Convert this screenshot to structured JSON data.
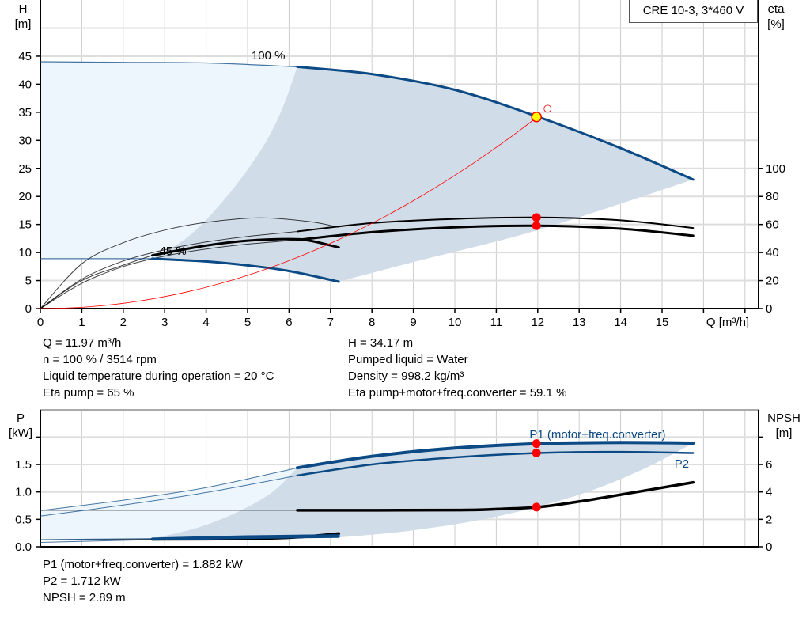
{
  "title": "CRE 10-3, 3*460 V",
  "colors": {
    "curve_blue": "#0b4a84",
    "region_dark": "#d0dce8",
    "region_light": "#eef6fd",
    "duty_point": "#ffff00",
    "marker": "#ff0000",
    "system_curve": "#ff0000",
    "grid": "#cccccc"
  },
  "chart_data": [
    {
      "type": "line",
      "xlabel": "Q [m³/h]",
      "ylabel_left": "H\n[m]",
      "ylabel_left_lines": [
        "H",
        "[m]"
      ],
      "ylabel_right_lines": [
        "eta",
        "[%]"
      ],
      "xlim": [
        0,
        17.3
      ],
      "ylim_left": [
        0,
        55
      ],
      "ylim_right": [
        0,
        220
      ],
      "grid": true,
      "x_ticks": [
        "0",
        "1",
        "2",
        "3",
        "4",
        "5",
        "6",
        "7",
        "8",
        "9",
        "10",
        "11",
        "12",
        "13",
        "14",
        "15"
      ],
      "y_ticks_left": [
        "0",
        "5",
        "10",
        "15",
        "20",
        "25",
        "30",
        "35",
        "40",
        "45"
      ],
      "y_ticks_right": [
        "0",
        "20",
        "40",
        "60",
        "80",
        "100"
      ],
      "head_curves": [
        {
          "label": "100 %",
          "points": [
            [
              0,
              44
            ],
            [
              2,
              43.9
            ],
            [
              4,
              43.8
            ],
            [
              6.2,
              43.1
            ],
            [
              8,
              41.8
            ],
            [
              10,
              39
            ],
            [
              12,
              34.2
            ],
            [
              14,
              28.6
            ],
            [
              15.75,
              23
            ]
          ],
          "thick_from": 6.2
        },
        {
          "label": "45 %",
          "points": [
            [
              0,
              8.9
            ],
            [
              2.7,
              8.9
            ],
            [
              4,
              8.4
            ],
            [
              5,
              7.7
            ],
            [
              6,
              6.7
            ],
            [
              7.2,
              4.8
            ]
          ],
          "thick_from": 2.7
        }
      ],
      "eta_curves": [
        {
          "points": [
            [
              0,
              0
            ],
            [
              1,
              32
            ],
            [
              2,
              47
            ],
            [
              3,
              56
            ],
            [
              4,
              61.5
            ],
            [
              5.3,
              64.8
            ],
            [
              6.5,
              62
            ],
            [
              7.2,
              58
            ]
          ],
          "thick_from": null
        },
        {
          "points": [
            [
              0,
              0
            ],
            [
              1,
              20
            ],
            [
              2,
              31
            ],
            [
              2.7,
              38
            ],
            [
              4,
              45
            ],
            [
              5,
              48.5
            ],
            [
              6,
              49.6
            ],
            [
              6.5,
              48.5
            ],
            [
              7.2,
              43.6
            ]
          ],
          "thick_from": 2.7
        },
        {
          "points": [
            [
              0,
              0
            ],
            [
              1,
              21
            ],
            [
              2,
              34
            ],
            [
              3,
              42
            ],
            [
              4,
              47.5
            ],
            [
              5,
              51.5
            ],
            [
              6.2,
              55
            ],
            [
              8,
              61
            ],
            [
              10,
              64
            ],
            [
              12,
              65
            ],
            [
              14,
              63
            ],
            [
              15.75,
              57.5
            ]
          ],
          "thick_from": 6.2
        },
        {
          "points": [
            [
              0,
              0
            ],
            [
              1,
              18
            ],
            [
              2,
              30
            ],
            [
              3,
              37.5
            ],
            [
              4,
              42.5
            ],
            [
              5,
              46
            ],
            [
              6.2,
              49
            ],
            [
              8,
              54.5
            ],
            [
              10,
              58
            ],
            [
              12,
              59.1
            ],
            [
              14,
              57
            ],
            [
              15.75,
              52
            ]
          ],
          "thick_from": 6.2
        }
      ],
      "system_curve": {
        "k": 0.2375,
        "q_max": 12.2
      },
      "duty_point": {
        "q": 11.97,
        "h": 34.17
      },
      "eta_points": [
        [
          11.97,
          65
        ],
        [
          11.97,
          59.1
        ]
      ]
    },
    {
      "type": "line",
      "ylabel_left_lines": [
        "P",
        "[kW]"
      ],
      "ylabel_right_lines": [
        "NPSH",
        "[m]"
      ],
      "xlim": [
        0,
        17.3
      ],
      "ylim_left": [
        0,
        2.5
      ],
      "ylim_right": [
        0,
        10
      ],
      "grid": true,
      "y_ticks_left": [
        "0.0",
        "0.5",
        "1.0",
        "1.5"
      ],
      "y_ticks_right": [
        "0",
        "2",
        "4",
        "6"
      ],
      "power_curves": [
        {
          "label": "P1 (motor+freq.converter)",
          "points": [
            [
              0,
              0.66
            ],
            [
              2,
              0.85
            ],
            [
              4,
              1.08
            ],
            [
              6.2,
              1.44
            ],
            [
              8,
              1.65
            ],
            [
              10,
              1.8
            ],
            [
              12,
              1.88
            ],
            [
              14,
              1.9
            ],
            [
              15.75,
              1.89
            ]
          ],
          "thick_from": 6.2
        },
        {
          "label": "P2",
          "points": [
            [
              0,
              0.56
            ],
            [
              2,
              0.76
            ],
            [
              4,
              0.99
            ],
            [
              6.2,
              1.3
            ],
            [
              8,
              1.5
            ],
            [
              10,
              1.63
            ],
            [
              12,
              1.71
            ],
            [
              14,
              1.73
            ],
            [
              15.75,
              1.71
            ]
          ],
          "thick_from": 6.2
        },
        {
          "points": [
            [
              0,
              0.13
            ],
            [
              2.7,
              0.15
            ],
            [
              5,
              0.19
            ],
            [
              7.2,
              0.21
            ]
          ],
          "thick_from": 2.7
        },
        {
          "points": [
            [
              0,
              0.08
            ],
            [
              2.7,
              0.13
            ],
            [
              5,
              0.16
            ],
            [
              7.2,
              0.18
            ]
          ],
          "thick_from": 2.7
        }
      ],
      "npsh_curves": [
        {
          "points": [
            [
              0,
              2.66
            ],
            [
              6.2,
              2.66
            ],
            [
              10,
              2.68
            ],
            [
              11,
              2.75
            ],
            [
              12,
              2.89
            ],
            [
              13,
              3.3
            ],
            [
              14,
              3.8
            ],
            [
              15.75,
              4.7
            ]
          ],
          "thick_from": 6.2
        },
        {
          "points": [
            [
              0,
              0.5
            ],
            [
              2.7,
              0.55
            ],
            [
              5,
              0.58
            ],
            [
              6.2,
              0.7
            ],
            [
              7.2,
              0.96
            ]
          ],
          "thick_from": 2.7
        }
      ],
      "operating_points": {
        "p1": 1.882,
        "p2": 1.712,
        "npsh": 2.89,
        "q": 11.97
      }
    }
  ],
  "info_top_left": [
    "Q = 11.97 m³/h",
    "n = 100 % / 3514 rpm",
    "Liquid temperature during operation = 20 °C",
    "Eta pump = 65 %"
  ],
  "info_top_right": [
    "H = 34.17 m",
    "Pumped liquid = Water",
    "Density = 998.2 kg/m³",
    "Eta pump+motor+freq.converter = 59.1 %"
  ],
  "info_bottom": [
    "P1 (motor+freq.converter) = 1.882 kW",
    "P2 = 1.712 kW",
    "NPSH = 2.89 m"
  ]
}
